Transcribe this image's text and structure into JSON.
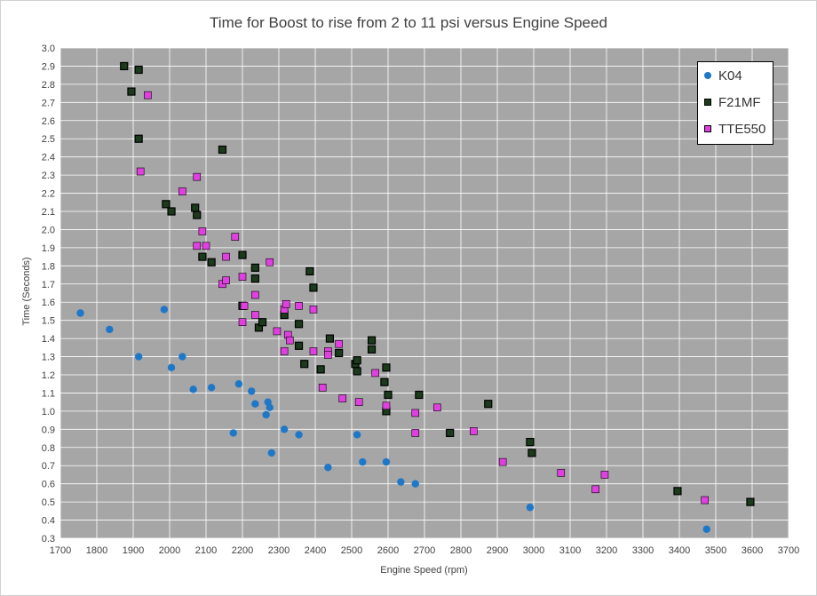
{
  "chart_data": {
    "type": "scatter",
    "title": "Time for Boost to rise from 2 to 11 psi versus Engine Speed",
    "xlabel": "Engine Speed (rpm)",
    "ylabel": "Time (Seconds)",
    "xlim": [
      1700,
      3700
    ],
    "ylim": [
      0.3,
      3.0
    ],
    "x_ticks": [
      "1700",
      "1800",
      "1900",
      "2000",
      "2100",
      "2200",
      "2300",
      "2400",
      "2500",
      "2600",
      "2700",
      "2800",
      "2900",
      "3000",
      "3100",
      "3200",
      "3300",
      "3400",
      "3500",
      "3600",
      "3700"
    ],
    "y_ticks": [
      "0.3",
      "0.4",
      "0.5",
      "0.6",
      "0.7",
      "0.8",
      "0.9",
      "1.0",
      "1.1",
      "1.2",
      "1.3",
      "1.4",
      "1.5",
      "1.6",
      "1.7",
      "1.8",
      "1.9",
      "2.0",
      "2.1",
      "2.2",
      "2.3",
      "2.4",
      "2.5",
      "2.6",
      "2.7",
      "2.8",
      "2.9",
      "3.0"
    ],
    "grid": true,
    "background": "#a6a6a6",
    "legend_position": "top-right",
    "series": [
      {
        "name": "K04",
        "marker": "circle",
        "color": "#1f77c8",
        "points": [
          [
            1755,
            1.54
          ],
          [
            1835,
            1.45
          ],
          [
            1915,
            1.3
          ],
          [
            1985,
            1.56
          ],
          [
            2005,
            1.24
          ],
          [
            2035,
            1.3
          ],
          [
            2065,
            1.12
          ],
          [
            2115,
            1.13
          ],
          [
            2175,
            0.88
          ],
          [
            2190,
            1.15
          ],
          [
            2225,
            1.11
          ],
          [
            2235,
            1.04
          ],
          [
            2265,
            0.98
          ],
          [
            2270,
            1.05
          ],
          [
            2275,
            1.02
          ],
          [
            2280,
            0.77
          ],
          [
            2315,
            0.9
          ],
          [
            2355,
            0.87
          ],
          [
            2435,
            0.69
          ],
          [
            2515,
            0.87
          ],
          [
            2530,
            0.72
          ],
          [
            2595,
            0.72
          ],
          [
            2635,
            0.61
          ],
          [
            2675,
            0.6
          ],
          [
            2990,
            0.47
          ],
          [
            3475,
            0.35
          ]
        ]
      },
      {
        "name": "F21MF",
        "marker": "square",
        "color": "#000000",
        "fill": "#1c3a1c",
        "points": [
          [
            1875,
            2.9
          ],
          [
            1895,
            2.76
          ],
          [
            1915,
            2.88
          ],
          [
            1915,
            2.5
          ],
          [
            1990,
            2.14
          ],
          [
            2005,
            2.1
          ],
          [
            2070,
            2.12
          ],
          [
            2075,
            2.08
          ],
          [
            2090,
            1.85
          ],
          [
            2115,
            1.82
          ],
          [
            2145,
            2.44
          ],
          [
            2200,
            1.58
          ],
          [
            2200,
            1.86
          ],
          [
            2235,
            1.79
          ],
          [
            2235,
            1.73
          ],
          [
            2245,
            1.46
          ],
          [
            2255,
            1.49
          ],
          [
            2315,
            1.53
          ],
          [
            2355,
            1.36
          ],
          [
            2355,
            1.48
          ],
          [
            2370,
            1.26
          ],
          [
            2385,
            1.77
          ],
          [
            2395,
            1.68
          ],
          [
            2415,
            1.23
          ],
          [
            2440,
            1.4
          ],
          [
            2465,
            1.32
          ],
          [
            2510,
            1.26
          ],
          [
            2515,
            1.22
          ],
          [
            2515,
            1.28
          ],
          [
            2555,
            1.39
          ],
          [
            2555,
            1.34
          ],
          [
            2590,
            1.16
          ],
          [
            2595,
            1.24
          ],
          [
            2595,
            1.0
          ],
          [
            2600,
            1.09
          ],
          [
            2685,
            1.09
          ],
          [
            2770,
            0.88
          ],
          [
            2875,
            1.04
          ],
          [
            2990,
            0.83
          ],
          [
            2995,
            0.77
          ],
          [
            3395,
            0.56
          ],
          [
            3595,
            0.5
          ]
        ]
      },
      {
        "name": "TTE550",
        "marker": "square",
        "color": "#e040e0",
        "fill": "#e040e0",
        "points": [
          [
            1940,
            2.74
          ],
          [
            1920,
            2.32
          ],
          [
            2035,
            2.21
          ],
          [
            2075,
            2.29
          ],
          [
            2090,
            1.99
          ],
          [
            2075,
            1.91
          ],
          [
            2100,
            1.91
          ],
          [
            2180,
            1.96
          ],
          [
            2155,
            1.85
          ],
          [
            2145,
            1.7
          ],
          [
            2155,
            1.72
          ],
          [
            2200,
            1.74
          ],
          [
            2205,
            1.58
          ],
          [
            2200,
            1.49
          ],
          [
            2235,
            1.64
          ],
          [
            2235,
            1.53
          ],
          [
            2275,
            1.82
          ],
          [
            2295,
            1.44
          ],
          [
            2315,
            1.56
          ],
          [
            2320,
            1.59
          ],
          [
            2325,
            1.42
          ],
          [
            2330,
            1.39
          ],
          [
            2315,
            1.33
          ],
          [
            2355,
            1.58
          ],
          [
            2395,
            1.56
          ],
          [
            2395,
            1.33
          ],
          [
            2435,
            1.33
          ],
          [
            2435,
            1.31
          ],
          [
            2465,
            1.37
          ],
          [
            2420,
            1.13
          ],
          [
            2475,
            1.07
          ],
          [
            2520,
            1.05
          ],
          [
            2565,
            1.21
          ],
          [
            2595,
            1.03
          ],
          [
            2675,
            0.99
          ],
          [
            2675,
            0.88
          ],
          [
            2735,
            1.02
          ],
          [
            2835,
            0.89
          ],
          [
            2915,
            0.72
          ],
          [
            3075,
            0.66
          ],
          [
            3170,
            0.57
          ],
          [
            3195,
            0.65
          ],
          [
            3470,
            0.51
          ]
        ]
      }
    ]
  }
}
